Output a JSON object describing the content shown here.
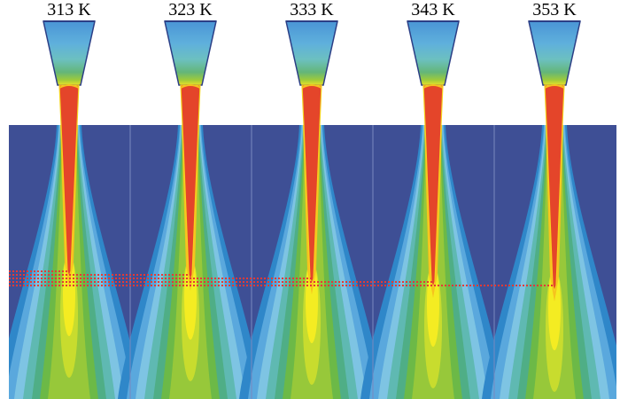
{
  "title": "",
  "palette": {
    "background": "#ffffff",
    "domain_blue": "#3e4f95",
    "divider": "#7a88be",
    "contour_levels": [
      "#2f87c9",
      "#5aa8dd",
      "#7ec4e3",
      "#5fb9b2",
      "#4fae86",
      "#6cb947",
      "#97c83a",
      "#c8dc2e",
      "#f4ec22",
      "#f6c21e",
      "#f39320",
      "#e44a26"
    ],
    "core_red": "#e4452a",
    "marker_red": "#e53935"
  },
  "panels": [
    {
      "label": "313 K",
      "tip_row": 0
    },
    {
      "label": "323 K",
      "tip_row": 1
    },
    {
      "label": "333 K",
      "tip_row": 2
    },
    {
      "label": "343 K",
      "tip_row": 3
    },
    {
      "label": "353 K",
      "tip_row": 4
    }
  ]
}
